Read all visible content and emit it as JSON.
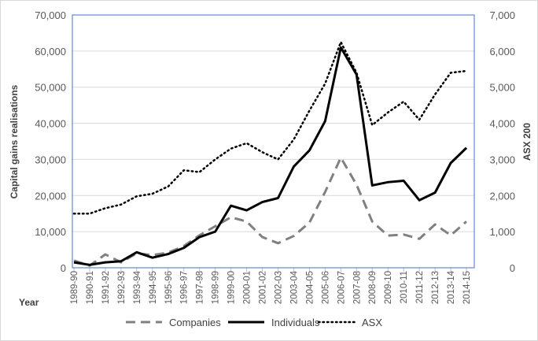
{
  "chart_data": {
    "type": "line",
    "title": "",
    "xlabel": "Year",
    "ylabel": "Capital gains realisations",
    "y2label": "ASX 200",
    "ylim": [
      0,
      70000
    ],
    "y2lim": [
      0,
      7000
    ],
    "yticks": [
      "0",
      "10,000",
      "20,000",
      "30,000",
      "40,000",
      "50,000",
      "60,000",
      "70,000"
    ],
    "y2ticks": [
      "0",
      "1,000",
      "2,000",
      "3,000",
      "4,000",
      "5,000",
      "6,000",
      "7,000"
    ],
    "grid": true,
    "legend_position": "bottom",
    "categories": [
      "1989-90",
      "1990-91",
      "1991-92",
      "1992-93",
      "1993-94",
      "1994-95",
      "1995-96",
      "1996-97",
      "1997-98",
      "1998-99",
      "1999-00",
      "2000-01",
      "2001-02",
      "2002-03",
      "2003-04",
      "2004-05",
      "2005-06",
      "2006-07",
      "2007-08",
      "2008-09",
      "2009-10",
      "2010-11",
      "2011-12",
      "2012-13",
      "2013-14",
      "2014-15"
    ],
    "series": [
      {
        "name": "Companies",
        "axis": "left",
        "style": "dashed",
        "color": "#808080",
        "values": [
          2000,
          600,
          3700,
          1500,
          4000,
          3500,
          4200,
          6000,
          9000,
          11500,
          14000,
          12800,
          8500,
          6800,
          8800,
          12500,
          21000,
          30500,
          23000,
          12800,
          8900,
          9200,
          8000,
          12000,
          9000,
          12800
        ]
      },
      {
        "name": "Individuals",
        "axis": "left",
        "style": "solid",
        "color": "#000000",
        "values": [
          1500,
          800,
          1500,
          1800,
          4300,
          2800,
          3800,
          5500,
          8500,
          10000,
          17200,
          15900,
          18200,
          19300,
          28000,
          32500,
          40600,
          61000,
          53500,
          22800,
          23700,
          24100,
          18700,
          20800,
          29000,
          33200
        ]
      },
      {
        "name": "ASX",
        "axis": "right",
        "style": "dotted",
        "color": "#000000",
        "values": [
          1500,
          1500,
          1650,
          1750,
          1980,
          2050,
          2250,
          2700,
          2650,
          3000,
          3300,
          3450,
          3200,
          3000,
          3550,
          4350,
          5100,
          6250,
          5400,
          3950,
          4300,
          4600,
          4100,
          4800,
          5400,
          5450
        ]
      }
    ]
  }
}
